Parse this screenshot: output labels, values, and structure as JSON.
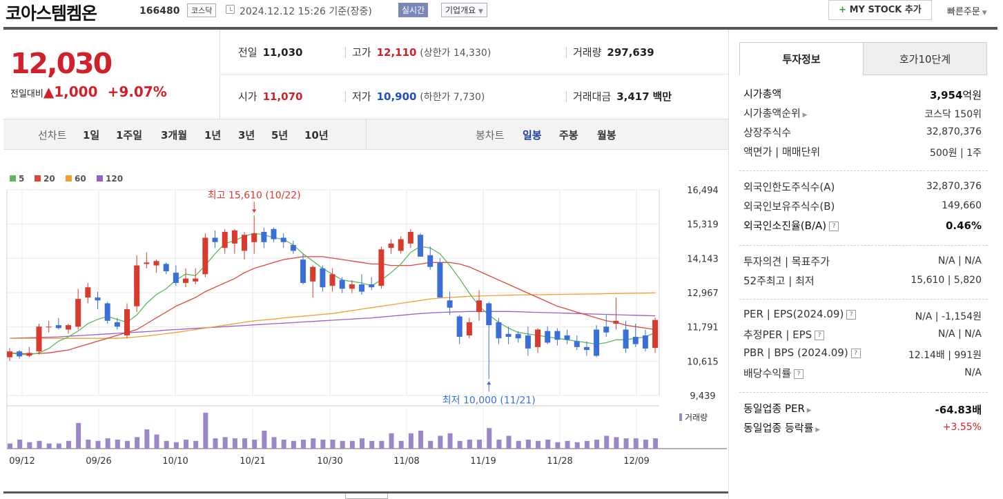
{
  "header": {
    "name": "코아스템켐온",
    "code": "166480",
    "market": "코스닥",
    "datetime": "2024.12.12 15:26 기준(장중)",
    "realtime": "실시간",
    "corp_overview": "기업개요",
    "mystock": "MY STOCK 추가",
    "quick_order": "빠른주문"
  },
  "summary": {
    "price": "12,030",
    "change_label": "전일대비",
    "change_value": "▲1,000",
    "change_pct": "+9.07%",
    "prev_label": "전일",
    "prev_value": "11,030",
    "high_label": "고가",
    "high_value": "12,110",
    "upper_limit": "(상한가 14,330)",
    "volume_label": "거래량",
    "volume_value": "297,639",
    "open_label": "시가",
    "open_value": "11,070",
    "low_label": "저가",
    "low_value": "10,900",
    "lower_limit": "(하한가 7,730)",
    "amount_label": "거래대금",
    "amount_value": "3,417",
    "amount_unit": "백만"
  },
  "tabs": {
    "line_label": "선차트",
    "line_items": [
      "1일",
      "1주일",
      "3개월",
      "1년",
      "3년",
      "5년",
      "10년"
    ],
    "candle_label": "봉차트",
    "candle_items": [
      "일봉",
      "주봉",
      "월봉"
    ],
    "active_candle": "일봉"
  },
  "chart_data": {
    "type": "candlestick",
    "ma_legend": [
      {
        "name": "5",
        "color": "#5cb85c"
      },
      {
        "name": "20",
        "color": "#e0453a"
      },
      {
        "name": "60",
        "color": "#f0a030"
      },
      {
        "name": "120",
        "color": "#9a5fc8"
      }
    ],
    "y_ticks": [
      16494,
      15319,
      14143,
      12967,
      11791,
      10615,
      9439
    ],
    "ylim": [
      9439,
      16494
    ],
    "x_tick_labels": [
      "09/12",
      "09/26",
      "10/10",
      "10/21",
      "10/30",
      "11/08",
      "11/19",
      "11/28",
      "12/09"
    ],
    "max_annotation": "최고 15,610 (10/22)",
    "min_annotation": "최저 10,000 (11/21)",
    "volume_label": "거래량",
    "candles": [
      {
        "o": 10750,
        "h": 11070,
        "l": 10620,
        "c": 10950
      },
      {
        "o": 10950,
        "h": 11000,
        "l": 10700,
        "c": 10780
      },
      {
        "o": 10800,
        "h": 11100,
        "l": 10750,
        "c": 10900
      },
      {
        "o": 10950,
        "h": 11900,
        "l": 10850,
        "c": 11800
      },
      {
        "o": 11800,
        "h": 12000,
        "l": 11600,
        "c": 11800
      },
      {
        "o": 11850,
        "h": 12100,
        "l": 11700,
        "c": 11750
      },
      {
        "o": 11700,
        "h": 11900,
        "l": 11550,
        "c": 11850
      },
      {
        "o": 11800,
        "h": 13100,
        "l": 11700,
        "c": 12750
      },
      {
        "o": 12800,
        "h": 13300,
        "l": 12600,
        "c": 13150
      },
      {
        "o": 12800,
        "h": 13000,
        "l": 12400,
        "c": 12700
      },
      {
        "o": 12600,
        "h": 12650,
        "l": 11900,
        "c": 12000
      },
      {
        "o": 11950,
        "h": 12100,
        "l": 11700,
        "c": 11800
      },
      {
        "o": 11500,
        "h": 12600,
        "l": 11400,
        "c": 12400
      },
      {
        "o": 12500,
        "h": 14250,
        "l": 12300,
        "c": 13900
      },
      {
        "o": 13950,
        "h": 14350,
        "l": 13800,
        "c": 14000
      },
      {
        "o": 13900,
        "h": 14100,
        "l": 13650,
        "c": 14050
      },
      {
        "o": 13950,
        "h": 14000,
        "l": 13600,
        "c": 13700
      },
      {
        "o": 13650,
        "h": 13900,
        "l": 13200,
        "c": 13300
      },
      {
        "o": 13300,
        "h": 13800,
        "l": 13150,
        "c": 13450
      },
      {
        "o": 13350,
        "h": 13800,
        "l": 13250,
        "c": 13450
      },
      {
        "o": 13600,
        "h": 15000,
        "l": 13500,
        "c": 14850
      },
      {
        "o": 14850,
        "h": 15100,
        "l": 14500,
        "c": 14700
      },
      {
        "o": 14500,
        "h": 15150,
        "l": 14300,
        "c": 15050
      },
      {
        "o": 14650,
        "h": 15150,
        "l": 14300,
        "c": 15100
      },
      {
        "o": 14400,
        "h": 15050,
        "l": 14100,
        "c": 14950
      },
      {
        "o": 14700,
        "h": 15610,
        "l": 14300,
        "c": 15000
      },
      {
        "o": 15050,
        "h": 15200,
        "l": 14500,
        "c": 14700
      },
      {
        "o": 15150,
        "h": 15200,
        "l": 14700,
        "c": 14800
      },
      {
        "o": 14850,
        "h": 15000,
        "l": 14500,
        "c": 14700
      },
      {
        "o": 14600,
        "h": 14750,
        "l": 14300,
        "c": 14400
      },
      {
        "o": 14100,
        "h": 14300,
        "l": 13250,
        "c": 13300
      },
      {
        "o": 13350,
        "h": 13900,
        "l": 12800,
        "c": 13850
      },
      {
        "o": 13800,
        "h": 13900,
        "l": 13000,
        "c": 13150
      },
      {
        "o": 13200,
        "h": 13800,
        "l": 13000,
        "c": 13600
      },
      {
        "o": 13400,
        "h": 13500,
        "l": 12950,
        "c": 13100
      },
      {
        "o": 13100,
        "h": 13400,
        "l": 12950,
        "c": 13250
      },
      {
        "o": 13250,
        "h": 13600,
        "l": 12900,
        "c": 13000
      },
      {
        "o": 13250,
        "h": 13500,
        "l": 13050,
        "c": 13150
      },
      {
        "o": 13200,
        "h": 14550,
        "l": 13100,
        "c": 14450
      },
      {
        "o": 14500,
        "h": 14800,
        "l": 14300,
        "c": 14650
      },
      {
        "o": 14400,
        "h": 14900,
        "l": 14300,
        "c": 14800
      },
      {
        "o": 14650,
        "h": 15150,
        "l": 14500,
        "c": 15050
      },
      {
        "o": 14950,
        "h": 15000,
        "l": 14200,
        "c": 14200
      },
      {
        "o": 14250,
        "h": 14550,
        "l": 13750,
        "c": 13850
      },
      {
        "o": 14000,
        "h": 14150,
        "l": 12800,
        "c": 12800
      },
      {
        "o": 12700,
        "h": 13000,
        "l": 12200,
        "c": 12450
      },
      {
        "o": 12150,
        "h": 12200,
        "l": 11200,
        "c": 11450
      },
      {
        "o": 11500,
        "h": 12100,
        "l": 11400,
        "c": 11950
      },
      {
        "o": 12300,
        "h": 13050,
        "l": 12000,
        "c": 12700
      },
      {
        "o": 12600,
        "h": 12650,
        "l": 10000,
        "c": 11850
      },
      {
        "o": 11950,
        "h": 12100,
        "l": 11200,
        "c": 11400
      },
      {
        "o": 11550,
        "h": 11800,
        "l": 11200,
        "c": 11450
      },
      {
        "o": 11550,
        "h": 11650,
        "l": 11250,
        "c": 11400
      },
      {
        "o": 11500,
        "h": 11800,
        "l": 10800,
        "c": 11050
      },
      {
        "o": 11100,
        "h": 11750,
        "l": 10900,
        "c": 11700
      },
      {
        "o": 11650,
        "h": 11800,
        "l": 11200,
        "c": 11250
      },
      {
        "o": 11650,
        "h": 11750,
        "l": 11150,
        "c": 11350
      },
      {
        "o": 11500,
        "h": 11700,
        "l": 11200,
        "c": 11350
      },
      {
        "o": 11300,
        "h": 11500,
        "l": 11000,
        "c": 11100
      },
      {
        "o": 11100,
        "h": 11300,
        "l": 10800,
        "c": 11000
      },
      {
        "o": 11700,
        "h": 11850,
        "l": 10750,
        "c": 10800
      },
      {
        "o": 11800,
        "h": 12200,
        "l": 11450,
        "c": 11600
      },
      {
        "o": 11900,
        "h": 12800,
        "l": 11700,
        "c": 12000
      },
      {
        "o": 11700,
        "h": 12000,
        "l": 10900,
        "c": 11050
      },
      {
        "o": 11450,
        "h": 11900,
        "l": 11100,
        "c": 11200
      },
      {
        "o": 11500,
        "h": 11700,
        "l": 10950,
        "c": 11050
      },
      {
        "o": 11070,
        "h": 12110,
        "l": 10900,
        "c": 12030
      }
    ],
    "ma": {
      "5": [
        10900,
        10850,
        10830,
        10900,
        11050,
        11300,
        11450,
        11650,
        11900,
        12050,
        12150,
        12050,
        11950,
        12200,
        12600,
        12900,
        13100,
        13400,
        13600,
        13550,
        13900,
        14300,
        14650,
        14750,
        14900,
        15000,
        14950,
        14850,
        14800,
        14600,
        14300,
        14050,
        13800,
        13600,
        13400,
        13350,
        13300,
        13200,
        13400,
        13650,
        13950,
        14350,
        14550,
        14500,
        14300,
        13900,
        13450,
        12950,
        12500,
        12200,
        11950,
        11750,
        11600,
        11550,
        11500,
        11450,
        11400,
        11350,
        11300,
        11250,
        11200,
        11250,
        11350,
        11350,
        11400,
        11450,
        11600
      ],
      "20": [
        10900,
        10880,
        10870,
        10880,
        10900,
        10950,
        11000,
        11100,
        11200,
        11300,
        11400,
        11500,
        11600,
        11700,
        11900,
        12100,
        12300,
        12500,
        12650,
        12800,
        13000,
        13150,
        13300,
        13450,
        13650,
        13800,
        13900,
        14000,
        14100,
        14150,
        14200,
        14200,
        14200,
        14150,
        14100,
        14050,
        14000,
        13950,
        13950,
        13900,
        13900,
        13900,
        13950,
        14000,
        14000,
        14000,
        13950,
        13850,
        13700,
        13550,
        13400,
        13250,
        13100,
        12950,
        12800,
        12650,
        12500,
        12400,
        12300,
        12200,
        12100,
        12000,
        11950,
        11850,
        11800,
        11750,
        11700
      ],
      "60": [
        11400,
        11400,
        11400,
        11400,
        11400,
        11400,
        11400,
        11400,
        11400,
        11400,
        11400,
        11400,
        11420,
        11450,
        11480,
        11520,
        11560,
        11600,
        11650,
        11700,
        11750,
        11800,
        11850,
        11900,
        11950,
        12000,
        12030,
        12060,
        12100,
        12130,
        12160,
        12190,
        12220,
        12250,
        12300,
        12350,
        12400,
        12450,
        12500,
        12550,
        12600,
        12650,
        12700,
        12750,
        12780,
        12800,
        12820,
        12840,
        12850,
        12860,
        12870,
        12880,
        12885,
        12890,
        12895,
        12900,
        12905,
        12910,
        12915,
        12920,
        12925,
        12930,
        12935,
        12940,
        12945,
        12950,
        12960
      ],
      "120": [
        11400,
        11410,
        11420,
        11430,
        11440,
        11450,
        11470,
        11490,
        11510,
        11530,
        11550,
        11570,
        11590,
        11610,
        11630,
        11650,
        11680,
        11700,
        11720,
        11740,
        11760,
        11780,
        11800,
        11820,
        11840,
        11860,
        11880,
        11900,
        11920,
        11940,
        11960,
        11980,
        12000,
        12020,
        12040,
        12060,
        12080,
        12100,
        12130,
        12160,
        12190,
        12220,
        12250,
        12270,
        12290,
        12300,
        12310,
        12320,
        12320,
        12320,
        12320,
        12320,
        12310,
        12300,
        12290,
        12280,
        12270,
        12260,
        12250,
        12240,
        12230,
        12220,
        12210,
        12200,
        12190,
        12180,
        12170
      ]
    },
    "volume": [
      0.2,
      0.35,
      0.25,
      0.3,
      0.2,
      0.2,
      0.3,
      1.0,
      0.35,
      0.3,
      0.4,
      0.35,
      0.3,
      0.45,
      0.75,
      0.55,
      0.3,
      0.25,
      0.35,
      0.3,
      1.4,
      0.4,
      0.45,
      0.4,
      0.4,
      0.35,
      0.7,
      0.45,
      0.35,
      0.3,
      0.35,
      0.4,
      0.35,
      0.35,
      0.3,
      0.3,
      0.4,
      0.3,
      0.3,
      0.6,
      0.3,
      0.6,
      0.7,
      0.3,
      0.5,
      0.6,
      0.3,
      0.35,
      0.35,
      0.8,
      0.35,
      0.5,
      0.3,
      0.35,
      0.3,
      0.35,
      0.25,
      0.3,
      0.25,
      0.3,
      0.35,
      0.5,
      0.45,
      0.4,
      0.4,
      0.35,
      0.4
    ],
    "volume_up": [
      true,
      false,
      true,
      true,
      true,
      false,
      true,
      true,
      true,
      false,
      false,
      false,
      true,
      true,
      true,
      true,
      false,
      false,
      true,
      true,
      true,
      false,
      true,
      true,
      true,
      true,
      false,
      false,
      false,
      false,
      false,
      true,
      false,
      true,
      false,
      true,
      false,
      false,
      true,
      true,
      true,
      true,
      false,
      false,
      false,
      false,
      false,
      true,
      true,
      false,
      false,
      false,
      false,
      false,
      true,
      false,
      false,
      false,
      false,
      false,
      false,
      false,
      true,
      false,
      false,
      false,
      true
    ]
  },
  "right_panel": {
    "tab_active": "투자정보",
    "tab_other": "호가10단계",
    "rows1": [
      {
        "k": "시가총액",
        "v": "3,954",
        "unit": "억원"
      },
      {
        "k": "시가총액순위",
        "v": "코스닥 150위"
      },
      {
        "k": "상장주식수",
        "v": "32,870,376"
      },
      {
        "k": "액면가 | 매매단위",
        "v": "500원 | 1주"
      }
    ],
    "rows2": [
      {
        "k": "외국인한도주식수(A)",
        "v": "32,870,376"
      },
      {
        "k": "외국인보유주식수(B)",
        "v": "149,660"
      },
      {
        "k": "외국인소진율(B/A)",
        "v": "0.46%"
      }
    ],
    "rows3": [
      {
        "k": "투자의견 | 목표주가",
        "v": "N/A | N/A"
      },
      {
        "k": "52주최고 | 최저",
        "v": "15,610 | 5,820"
      }
    ],
    "rows4": [
      {
        "k": "PER | EPS(2024.09)",
        "v": "N/A | -1,154원"
      },
      {
        "k": "추정PER | EPS",
        "v": "N/A | N/A"
      },
      {
        "k": "PBR | BPS (2024.09)",
        "v": "12.14배 | 991원"
      },
      {
        "k": "배당수익률",
        "v": "N/A"
      }
    ],
    "rows5": [
      {
        "k": "동일업종 PER",
        "v": "-64.83배"
      },
      {
        "k": "동일업종 등락률",
        "v": "+3.55%"
      }
    ]
  }
}
